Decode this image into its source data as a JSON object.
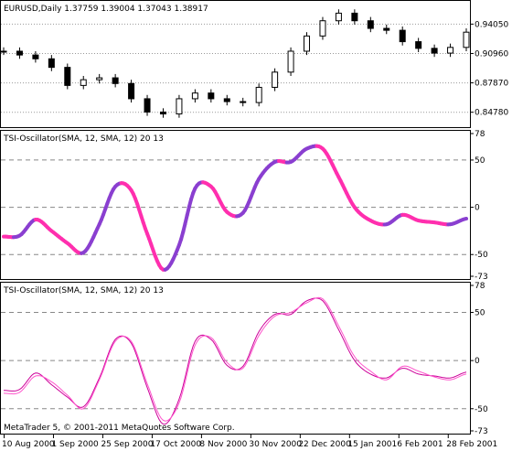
{
  "chart_data": [
    {
      "type": "candlestick",
      "title": "EURUSD,Daily  1.37759 1.39004 1.37043 1.38917",
      "y_ticks": [
        "0.94050",
        "0.90960",
        "0.87870",
        "0.84780"
      ],
      "y_tick_values": [
        0.9405,
        0.9096,
        0.8787,
        0.8478
      ],
      "ylim": [
        0.835,
        0.962
      ],
      "grid": true,
      "x": [
        "2000-08-10",
        "2000-08-17",
        "2000-08-24",
        "2000-08-31",
        "2000-09-07",
        "2000-09-14",
        "2000-09-21",
        "2000-09-28",
        "2000-10-05",
        "2000-10-12",
        "2000-10-19",
        "2000-10-26",
        "2000-11-02",
        "2000-11-09",
        "2000-11-16",
        "2000-11-23",
        "2000-11-30",
        "2000-12-07",
        "2000-12-14",
        "2000-12-21",
        "2000-12-28",
        "2001-01-04",
        "2001-01-11",
        "2001-01-18",
        "2001-01-25",
        "2001-02-01",
        "2001-02-08",
        "2001-02-15",
        "2001-02-22",
        "2001-02-28"
      ],
      "close": [
        0.912,
        0.908,
        0.904,
        0.895,
        0.876,
        0.882,
        0.884,
        0.878,
        0.862,
        0.848,
        0.846,
        0.862,
        0.868,
        0.862,
        0.859,
        0.858,
        0.874,
        0.89,
        0.912,
        0.928,
        0.944,
        0.952,
        0.944,
        0.936,
        0.934,
        0.922,
        0.915,
        0.91,
        0.916,
        0.932
      ]
    },
    {
      "type": "line",
      "title": "TSI-Oscillator(SMA, 12, SMA, 12) 20 13",
      "y_ticks": [
        "78",
        "50",
        "0",
        "-50",
        "-73"
      ],
      "y_tick_values": [
        78,
        50,
        0,
        -50,
        -73
      ],
      "ylim": [
        -73,
        78
      ],
      "style": "color-histogram",
      "colors": {
        "rising": "#8a3fd0",
        "falling": "#ff2fae"
      },
      "x": [
        "2000-08-10",
        "2000-08-17",
        "2000-08-24",
        "2000-08-31",
        "2000-09-07",
        "2000-09-14",
        "2000-09-21",
        "2000-09-28",
        "2000-10-05",
        "2000-10-12",
        "2000-10-19",
        "2000-10-26",
        "2000-11-02",
        "2000-11-09",
        "2000-11-16",
        "2000-11-23",
        "2000-11-30",
        "2000-12-07",
        "2000-12-14",
        "2000-12-21",
        "2000-12-28",
        "2001-01-04",
        "2001-01-11",
        "2001-01-18",
        "2001-01-25",
        "2001-02-01",
        "2001-02-08",
        "2001-02-15",
        "2001-02-22",
        "2001-02-28"
      ],
      "values": [
        -31,
        -30,
        -13,
        -25,
        -38,
        -48,
        -18,
        22,
        18,
        -28,
        -66,
        -40,
        20,
        22,
        -5,
        -6,
        30,
        48,
        48,
        62,
        62,
        32,
        0,
        -14,
        -18,
        -8,
        -14,
        -16,
        -18,
        -12
      ]
    },
    {
      "type": "line",
      "title": "TSI-Oscillator(SMA, 12, SMA, 12) 20 13",
      "y_ticks": [
        "78",
        "50",
        "0",
        "-50",
        "-73"
      ],
      "y_tick_values": [
        78,
        50,
        0,
        -50,
        -73
      ],
      "ylim": [
        -73,
        78
      ],
      "colors": {
        "main": "#cc0099",
        "signal": "#ff55cc"
      },
      "x": [
        "2000-08-10",
        "2000-08-17",
        "2000-08-24",
        "2000-08-31",
        "2000-09-07",
        "2000-09-14",
        "2000-09-21",
        "2000-09-28",
        "2000-10-05",
        "2000-10-12",
        "2000-10-19",
        "2000-10-26",
        "2000-11-02",
        "2000-11-09",
        "2000-11-16",
        "2000-11-23",
        "2000-11-30",
        "2000-12-07",
        "2000-12-14",
        "2000-12-21",
        "2000-12-28",
        "2001-01-04",
        "2001-01-11",
        "2001-01-18",
        "2001-01-25",
        "2001-02-01",
        "2001-02-08",
        "2001-02-15",
        "2001-02-22",
        "2001-02-28"
      ],
      "series": [
        {
          "values": [
            -31,
            -30,
            -13,
            -25,
            -38,
            -48,
            -18,
            22,
            18,
            -28,
            -66,
            -40,
            20,
            22,
            -5,
            -6,
            30,
            48,
            48,
            62,
            62,
            32,
            0,
            -14,
            -18,
            -8,
            -14,
            -16,
            -18,
            -12
          ]
        },
        {
          "values": [
            -34,
            -33,
            -16,
            -22,
            -36,
            -50,
            -20,
            20,
            20,
            -24,
            -62,
            -44,
            16,
            24,
            -2,
            -8,
            26,
            46,
            50,
            60,
            64,
            36,
            4,
            -11,
            -20,
            -6,
            -11,
            -17,
            -20,
            -14
          ]
        }
      ],
      "x_ticks": [
        "10 Aug 2000",
        "1 Sep 2000",
        "25 Sep 2000",
        "17 Oct 2000",
        "8 Nov 2000",
        "30 Nov 2000",
        "22 Dec 2000",
        "15 Jan 2001",
        "6 Feb 2001",
        "28 Feb 2001"
      ]
    }
  ],
  "copyright": "MetaTrader 5, © 2001-2011 MetaQuotes Software Corp."
}
